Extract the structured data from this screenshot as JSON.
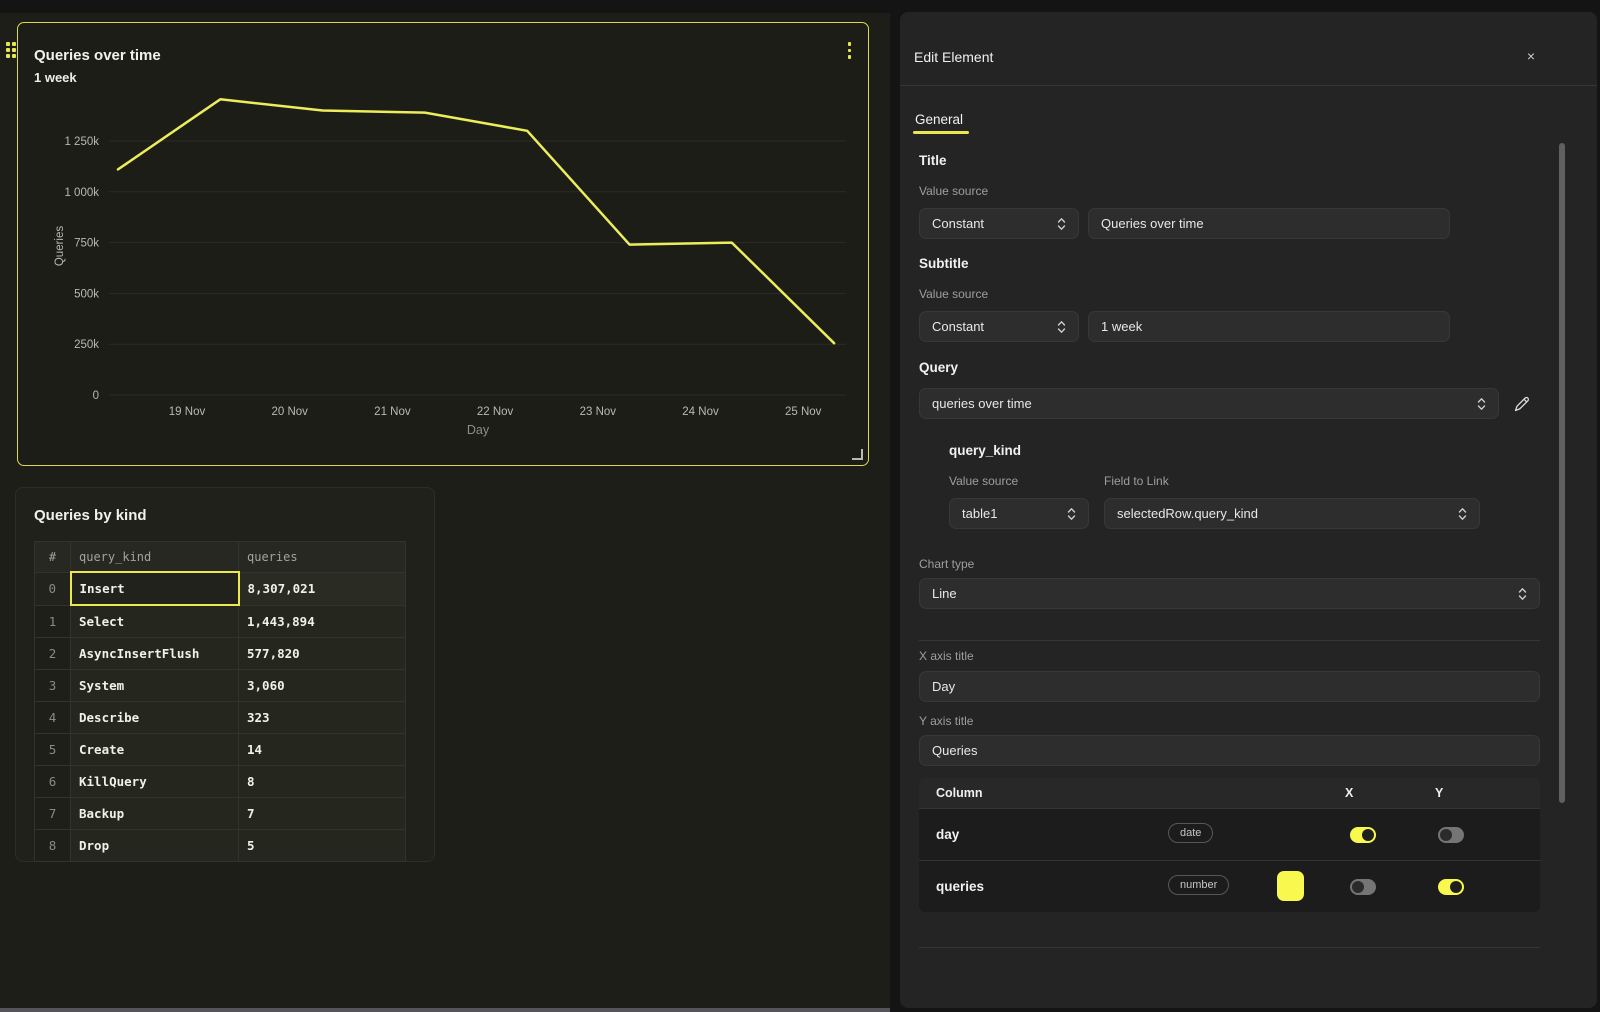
{
  "colors": {
    "accent_yellow": "#f8f84e",
    "line_color": "#eded5c",
    "card_selection_border": "#d9da52",
    "series_swatch": "#f8f84e"
  },
  "icons": {
    "close": "×",
    "kebab_menu": "⋮",
    "edit_pencil": "pencil",
    "select_chevron": "up-down-chevron",
    "drag_handle": "dot-grid",
    "resize_handle": "corner-bracket"
  },
  "workspace": {
    "chart_card": {
      "title": "Queries over time",
      "subtitle": "1 week"
    },
    "table_card": {
      "title": "Queries by kind",
      "columns": [
        "#",
        "query_kind",
        "queries"
      ],
      "rows": [
        [
          "0",
          "Insert",
          "8,307,021"
        ],
        [
          "1",
          "Select",
          "1,443,894"
        ],
        [
          "2",
          "AsyncInsertFlush",
          "577,820"
        ],
        [
          "3",
          "System",
          "3,060"
        ],
        [
          "4",
          "Describe",
          "323"
        ],
        [
          "5",
          "Create",
          "14"
        ],
        [
          "6",
          "KillQuery",
          "8"
        ],
        [
          "7",
          "Backup",
          "7"
        ],
        [
          "8",
          "Drop",
          "5"
        ]
      ],
      "selected": {
        "row": 0,
        "column": "query_kind"
      }
    }
  },
  "chart_data": {
    "type": "line",
    "title": "Queries over time",
    "subtitle": "1 week",
    "xlabel": "Day",
    "ylabel": "Queries",
    "x_ticks": [
      "19 Nov",
      "20 Nov",
      "21 Nov",
      "22 Nov",
      "23 Nov",
      "24 Nov",
      "25 Nov"
    ],
    "values": [
      1110000,
      1455000,
      1400000,
      1390000,
      1300000,
      740000,
      750000,
      255000
    ],
    "y_ticks": [
      0,
      250000,
      500000,
      750000,
      1000000,
      1250000
    ],
    "y_tick_labels": [
      "0",
      "250k",
      "500k",
      "750k",
      "1 000k",
      "1 250k"
    ],
    "ylim": [
      0,
      1550000
    ],
    "grid": true,
    "legend": false,
    "line_color": "#eded5c"
  },
  "panel": {
    "title": "Edit Element",
    "close_icon": "×",
    "tabs": [
      {
        "label": "General",
        "active": true
      }
    ],
    "sections": {
      "title": {
        "heading": "Title",
        "source_label": "Value source",
        "source": "Constant",
        "value": "Queries over time"
      },
      "subtitle": {
        "heading": "Subtitle",
        "source_label": "Value source",
        "source": "Constant",
        "value": "1 week"
      },
      "query": {
        "heading": "Query",
        "value": "queries over time"
      },
      "query_kind": {
        "heading": "query_kind",
        "source_label": "Value source",
        "source": "table1",
        "link_label": "Field to Link",
        "link_value": "selectedRow.query_kind"
      },
      "chart_type": {
        "label": "Chart type",
        "value": "Line"
      },
      "x_axis": {
        "label": "X axis title",
        "value": "Day"
      },
      "y_axis": {
        "label": "Y axis title",
        "value": "Queries"
      }
    },
    "columns_table": {
      "header": {
        "column": "Column",
        "x": "X",
        "y": "Y"
      },
      "rows": [
        {
          "name": "day",
          "type": "date",
          "swatch": null,
          "x_on": true,
          "y_on": false
        },
        {
          "name": "queries",
          "type": "number",
          "swatch": "#f8f84e",
          "x_on": false,
          "y_on": true
        }
      ]
    }
  }
}
